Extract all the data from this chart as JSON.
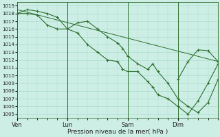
{
  "xlabel": "Pression niveau de la mer( hPa )",
  "bg_color": "#cceee4",
  "grid_color": "#aaddcc",
  "line_color": "#2d6e2d",
  "ylim": [
    1004.5,
    1019.5
  ],
  "yticks": [
    1005,
    1006,
    1007,
    1008,
    1009,
    1010,
    1011,
    1012,
    1013,
    1014,
    1015,
    1016,
    1017,
    1018,
    1019
  ],
  "day_labels": [
    "Ven",
    "Lun",
    "Sam",
    "Dim"
  ],
  "day_positions": [
    0,
    60,
    132,
    192
  ],
  "xlim": [
    0,
    240
  ],
  "series1_x": [
    0,
    12,
    24,
    36,
    48,
    60,
    72,
    84,
    96,
    108,
    120,
    126,
    132,
    144,
    156,
    162,
    168,
    180,
    192,
    204,
    216,
    228,
    240
  ],
  "series1_y": [
    1018.0,
    1018.5,
    1018.3,
    1018.0,
    1017.5,
    1016.0,
    1016.8,
    1017.0,
    1016.0,
    1015.0,
    1014.2,
    1013.5,
    1012.5,
    1011.5,
    1010.8,
    1011.5,
    1010.5,
    1009.0,
    1007.0,
    1006.0,
    1005.2,
    1006.5,
    1009.5
  ],
  "series2_x": [
    0,
    12,
    24,
    36,
    48,
    60,
    72,
    84,
    96,
    108,
    120,
    126,
    132,
    144,
    156,
    162,
    168,
    180,
    192,
    204,
    216,
    228,
    240
  ],
  "series2_y": [
    1018.0,
    1018.0,
    1017.8,
    1016.5,
    1016.0,
    1016.0,
    1015.5,
    1014.0,
    1013.0,
    1012.0,
    1011.8,
    1010.8,
    1010.5,
    1010.5,
    1009.2,
    1008.5,
    1007.5,
    1007.0,
    1006.0,
    1005.0,
    1006.7,
    1009.0,
    1011.5
  ],
  "series3_x": [
    0,
    240
  ],
  "series3_y": [
    1018.5,
    1011.8
  ],
  "series4_x": [
    192,
    204,
    216,
    228,
    240
  ],
  "series4_y": [
    1009.5,
    1011.8,
    1013.3,
    1013.2,
    1011.8
  ]
}
